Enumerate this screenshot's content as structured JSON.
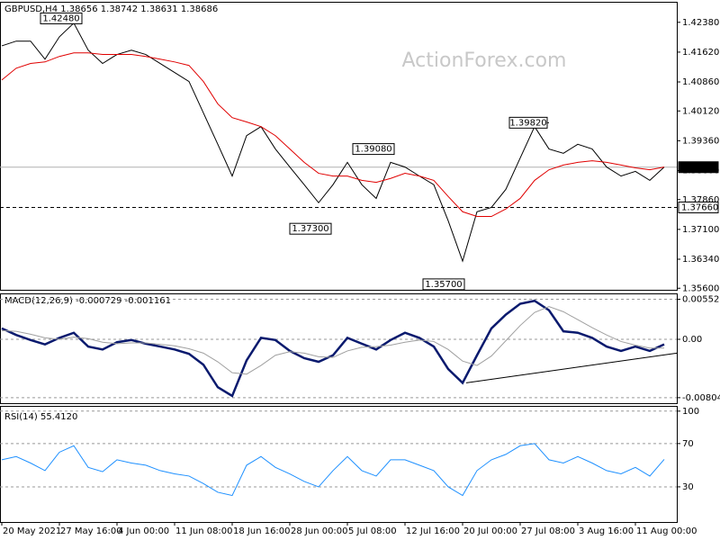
{
  "watermark": "ActionForex.com",
  "chart_data": [
    {
      "type": "line",
      "title": "GBPUSD,H4  1.38656 1.38742 1.38631 1.38686",
      "series": [
        {
          "name": "Close",
          "color": "#000000",
          "values": [
            1.4178,
            1.419,
            1.419,
            1.4144,
            1.4201,
            1.4236,
            1.4167,
            1.4133,
            1.4156,
            1.4167,
            1.4156,
            1.4133,
            1.411,
            1.4087,
            1.4007,
            1.3927,
            1.3846,
            1.3949,
            1.3972,
            1.3915,
            1.3869,
            1.3824,
            1.3778,
            1.3824,
            1.3881,
            1.3824,
            1.3789,
            1.3881,
            1.3869,
            1.3846,
            1.3824,
            1.3732,
            1.3629,
            1.3755,
            1.3766,
            1.3812,
            1.3892,
            1.3972,
            1.3915,
            1.3904,
            1.3927,
            1.3915,
            1.3869,
            1.3846,
            1.3858,
            1.3835,
            1.3869
          ]
        },
        {
          "name": "MA",
          "color": "#e00000",
          "values": [
            1.4091,
            1.4121,
            1.4133,
            1.4137,
            1.4151,
            1.416,
            1.416,
            1.4156,
            1.4156,
            1.4156,
            1.4151,
            1.4144,
            1.4137,
            1.4128,
            1.4087,
            1.403,
            1.3995,
            1.3984,
            1.3972,
            1.3949,
            1.3915,
            1.3881,
            1.3853,
            1.3846,
            1.3846,
            1.3835,
            1.383,
            1.384,
            1.3853,
            1.3846,
            1.3835,
            1.3794,
            1.3755,
            1.3743,
            1.3743,
            1.3762,
            1.3789,
            1.3835,
            1.3862,
            1.3874,
            1.3881,
            1.3885,
            1.3881,
            1.3874,
            1.3867,
            1.3862,
            1.3869
          ]
        }
      ],
      "ylim": [
        1.3556,
        1.4288
      ],
      "yticks": [
        {
          "value": 1.4238,
          "label": "1.42380"
        },
        {
          "value": 1.4162,
          "label": "1.41620"
        },
        {
          "value": 1.4086,
          "label": "1.40860"
        },
        {
          "value": 1.4012,
          "label": "1.40120"
        },
        {
          "value": 1.3936,
          "label": "1.39360"
        },
        {
          "value": 1.386,
          "label": "1.38600"
        },
        {
          "value": 1.3786,
          "label": "1.37860"
        },
        {
          "value": 1.371,
          "label": "1.37100"
        },
        {
          "value": 1.3634,
          "label": "1.36340"
        },
        {
          "value": 1.356,
          "label": "1.35600"
        }
      ],
      "grid": false,
      "reference_lines": [
        {
          "value": 1.38686,
          "label": "1.38686",
          "style": "solid"
        },
        {
          "value": 1.3766,
          "label": "1.37660",
          "style": "dashed"
        }
      ],
      "annotations": [
        {
          "value": 1.4248,
          "label": "1.42480"
        },
        {
          "value": 1.373,
          "label": "1.37300"
        },
        {
          "value": 1.3908,
          "label": "1.39080"
        },
        {
          "value": 1.357,
          "label": "1.35700"
        },
        {
          "value": 1.3982,
          "label": "1.39820"
        }
      ]
    },
    {
      "type": "line",
      "title": "MACD(12,26,9) -0.000729 -0.001161",
      "series": [
        {
          "name": "MACD",
          "color": "#0a1a6e",
          "values": [
            0.0015,
            0.0006,
            -0.0001,
            -0.0007,
            0.0002,
            0.0009,
            -0.001,
            -0.0014,
            -0.0004,
            -0.0001,
            -0.0006,
            -0.001,
            -0.0014,
            -0.002,
            -0.0035,
            -0.0066,
            -0.0078,
            -0.0029,
            0.0002,
            -0.0001,
            -0.0016,
            -0.0026,
            -0.0031,
            -0.0022,
            0.0002,
            -0.0006,
            -0.0014,
            -0.0001,
            0.0009,
            0.0002,
            -0.001,
            -0.0041,
            -0.006,
            -0.0022,
            0.0015,
            0.0034,
            0.0049,
            0.0053,
            0.004,
            0.0011,
            0.0009,
            0.0002,
            -0.001,
            -0.0016,
            -0.001,
            -0.0016,
            -0.0007
          ]
        },
        {
          "name": "Signal",
          "color": "#a0a0a0",
          "values": [
            0.0012,
            0.0011,
            0.0007,
            0.0002,
            0,
            0.0003,
            0.0001,
            -0.0004,
            -0.0006,
            -0.0005,
            -0.0005,
            -0.0007,
            -0.0009,
            -0.0013,
            -0.0019,
            -0.0031,
            -0.0046,
            -0.0048,
            -0.0036,
            -0.0022,
            -0.0017,
            -0.0019,
            -0.0024,
            -0.0025,
            -0.0016,
            -0.0011,
            -0.001,
            -0.0008,
            -0.0004,
            -0.0001,
            -0.0003,
            -0.0014,
            -0.003,
            -0.0036,
            -0.0023,
            -0.0002,
            0.0019,
            0.0037,
            0.0045,
            0.0038,
            0.0027,
            0.0016,
            0.0006,
            -0.0003,
            -0.0008,
            -0.0012,
            -0.0012
          ]
        }
      ],
      "ylim": [
        -0.0088,
        0.0062
      ],
      "yticks": [
        0.00552,
        {
          "value": 0,
          "label": "0.00"
        },
        -0.00804
      ],
      "grid": "dashed",
      "trendline": [
        -0.006,
        -0.0019
      ]
    },
    {
      "type": "line",
      "title": "RSI(14) 55.4120",
      "categories": [
        "20 May 2021",
        null,
        null,
        null,
        "27 May 16:00",
        null,
        null,
        null,
        "4 Jun 00:00",
        null,
        null,
        null,
        "11 Jun 08:00",
        null,
        null,
        null,
        "18 Jun 16:00",
        null,
        null,
        null,
        "28 Jun 00:00",
        null,
        null,
        null,
        "5 Jul 08:00",
        null,
        null,
        null,
        "12 Jul 16:00",
        null,
        null,
        null,
        "20 Jul 00:00",
        null,
        null,
        null,
        "27 Jul 08:00",
        null,
        null,
        null,
        "3 Aug 16:00",
        null,
        null,
        null,
        "11 Aug 00:00",
        null,
        null
      ],
      "series": [
        {
          "name": "RSI",
          "color": "#1e90ff",
          "values": [
            55,
            58,
            52,
            45,
            62,
            68,
            48,
            44,
            55,
            52,
            50,
            45,
            42,
            40,
            33,
            25,
            22,
            50,
            58,
            48,
            42,
            35,
            30,
            45,
            58,
            45,
            40,
            55,
            55,
            50,
            45,
            30,
            22,
            45,
            55,
            60,
            68,
            70,
            55,
            52,
            58,
            52,
            45,
            42,
            48,
            40,
            55.4
          ]
        }
      ],
      "ylim": [
        -2.5,
        104
      ],
      "yticks": [
        100,
        70,
        30
      ],
      "grid": "dashed"
    }
  ]
}
